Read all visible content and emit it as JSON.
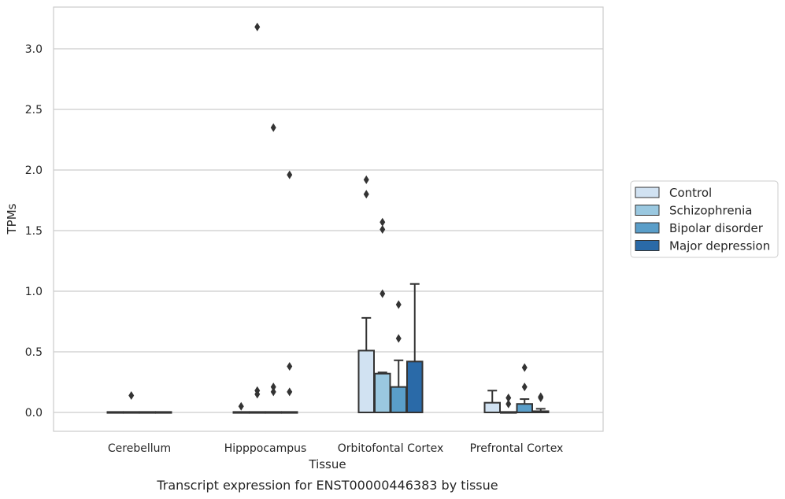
{
  "chart_data": {
    "type": "bar",
    "xlabel": "Tissue",
    "ylabel": "TPMs",
    "caption": "Transcript expression for ENST00000446383 by tissue",
    "ylim": [
      -0.15,
      3.3
    ],
    "yticks": [
      "0.0",
      "0.5",
      "1.0",
      "1.5",
      "2.0",
      "2.5",
      "3.0"
    ],
    "grid": "horizontal",
    "legend_position": "right",
    "categories": [
      "Cerebellum",
      "Hipppocampus",
      "Orbitofontal Cortex",
      "Prefrontal Cortex"
    ],
    "series": [
      {
        "name": "Control",
        "color": "#d1e2f2",
        "values": [
          0.0,
          0.0,
          0.51,
          0.08
        ],
        "error_upper": [
          0.0,
          0.0,
          0.78,
          0.18
        ],
        "outliers": [
          [],
          [
            0.05
          ],
          [
            1.92,
            1.8
          ],
          []
        ]
      },
      {
        "name": "Schizophrenia",
        "color": "#9ac8e0",
        "values": [
          0.0,
          0.0,
          0.32,
          0.0
        ],
        "error_upper": [
          0.0,
          0.0,
          0.33,
          0.0
        ],
        "outliers": [
          [
            0.14
          ],
          [
            3.18,
            0.18,
            0.15
          ],
          [
            1.57,
            1.51,
            0.98
          ],
          [
            0.12,
            0.07
          ]
        ]
      },
      {
        "name": "Bipolar disorder",
        "color": "#5a9ec9",
        "values": [
          0.0,
          0.0,
          0.21,
          0.07
        ],
        "error_upper": [
          0.0,
          0.0,
          0.43,
          0.11
        ],
        "outliers": [
          [],
          [
            2.35,
            0.21,
            0.17
          ],
          [
            0.89,
            0.61
          ],
          [
            0.37,
            0.21
          ]
        ]
      },
      {
        "name": "Major depression",
        "color": "#2a6aa8",
        "values": [
          0.0,
          0.0,
          0.42,
          0.01
        ],
        "error_upper": [
          0.0,
          0.0,
          1.06,
          0.03
        ],
        "outliers": [
          [],
          [
            1.96,
            0.38,
            0.17
          ],
          [],
          [
            0.13,
            0.12
          ]
        ]
      }
    ]
  }
}
